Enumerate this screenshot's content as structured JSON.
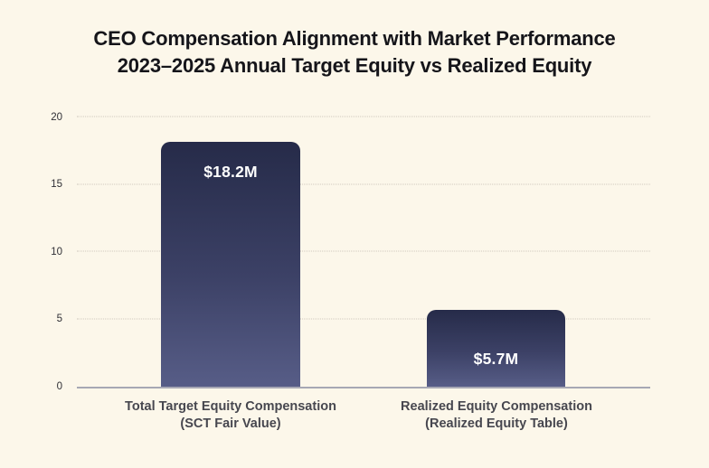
{
  "title": {
    "line1": "CEO Compensation Alignment with Market Performance",
    "line2": "2023–2025 Annual Target Equity vs Realized Equity"
  },
  "chart_data": {
    "type": "bar",
    "title": "CEO Compensation Alignment with Market Performance",
    "subtitle": "2023–2025 Annual Target Equity vs Realized Equity",
    "categories": [
      {
        "line1": "Total Target Equity Compensation",
        "line2": "(SCT Fair Value)"
      },
      {
        "line1": "Realized Equity Compensation",
        "line2": "(Realized Equity Table)"
      }
    ],
    "values": [
      18.2,
      5.7
    ],
    "bar_labels": [
      "$18.2M",
      "$5.7M"
    ],
    "xlabel": "",
    "ylabel": "",
    "ylim": [
      0,
      20
    ],
    "yticks": [
      0,
      5,
      10,
      15,
      20
    ],
    "grid": "horizontal-dotted",
    "legend": "none",
    "colors": {
      "background": "#fcf7ea",
      "bar_gradient_top": "#262b49",
      "bar_gradient_bottom": "#575d87",
      "bar_label_text": "#ffffff",
      "title_text": "#15151a",
      "tick_text": "#2f2f35",
      "category_text": "#47474f",
      "gridline": "#cfcabd",
      "axis_line": "#a7a8b4"
    }
  }
}
